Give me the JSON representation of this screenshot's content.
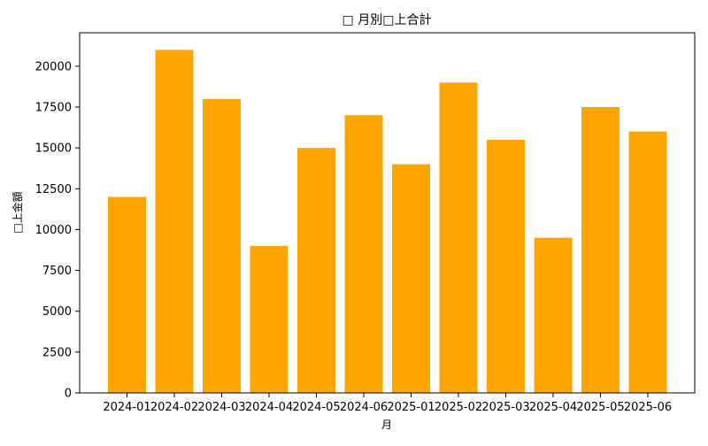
{
  "chart_data": {
    "type": "bar",
    "title": "□ 月別□上合計",
    "xlabel": "月",
    "ylabel": "□上金額",
    "categories": [
      "2024-01",
      "2024-02",
      "2024-03",
      "2024-04",
      "2024-05",
      "2024-06",
      "2025-01",
      "2025-02",
      "2025-03",
      "2025-04",
      "2025-05",
      "2025-06"
    ],
    "values": [
      12000,
      21000,
      18000,
      9000,
      15000,
      17000,
      14000,
      19000,
      15500,
      9500,
      17500,
      16000
    ],
    "yticks": [
      0,
      2500,
      5000,
      7500,
      10000,
      12500,
      15000,
      17500,
      20000
    ],
    "ylim": [
      0,
      22050
    ],
    "bar_color": "#FFA500",
    "grid": false,
    "legend": "none"
  }
}
